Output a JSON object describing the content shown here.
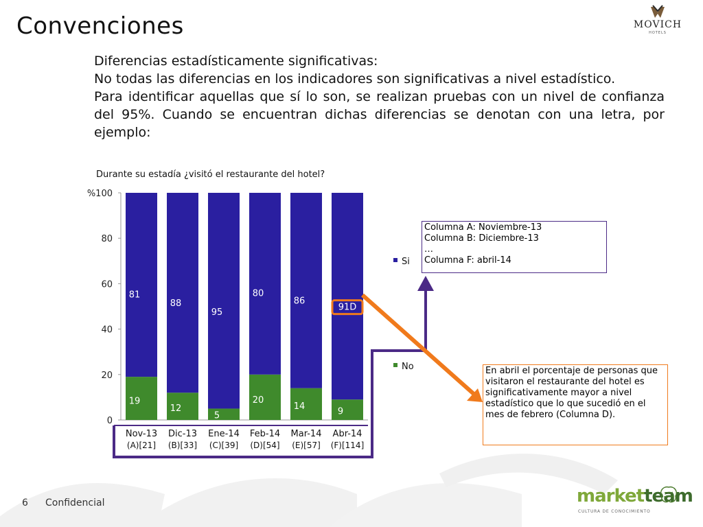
{
  "slide": {
    "title": "Convenciones",
    "page_number": "6",
    "footer_label": "Confidencial"
  },
  "logos": {
    "movich_word": "MOVICH",
    "movich_sub": "HOTELS",
    "marketteam_part1": "market",
    "marketteam_part2": "team",
    "marketteam_sub": "CULTURA DE CONOCIMIENTO"
  },
  "body": {
    "line1": "Diferencias estadísticamente significativas:",
    "line2": "No todas las diferencias en los indicadores son significativas a nivel estadístico.",
    "line3": "Para identificar aquellas que sí lo son, se realizan pruebas con un nivel de confianza del 95%. Cuando se encuentran dichas diferencias se denotan con una letra, por ejemplo:"
  },
  "columns_note": {
    "lines": [
      "Columna A: Noviembre-13",
      "Columna B: Diciembre-13",
      "…",
      "Columna F: abril-14"
    ]
  },
  "explain_note": {
    "text": "En abril el porcentaje de personas que visitaron el restaurante del hotel es significativamente mayor a nivel estadístico que lo que sucedió en el mes de febrero (Columna D)."
  },
  "colors": {
    "si": "#2a1fa0",
    "no": "#3f8a2c",
    "highlight": "#f07a1c",
    "connector": "#4b2a86"
  },
  "chart_data": {
    "type": "bar",
    "stacked": true,
    "title": "Durante su estadía ¿visitó el restaurante del hotel?",
    "y_unit_label": "%",
    "ylim": [
      0,
      100
    ],
    "yticks": [
      0,
      20,
      40,
      60,
      80,
      100
    ],
    "categories": [
      "Nov-13",
      "Dic-13",
      "Ene-14",
      "Feb-14",
      "Mar-14",
      "Abr-14"
    ],
    "category_codes": [
      "(A)",
      "(B)",
      "(C)",
      "(D)",
      "(E)",
      "(F)"
    ],
    "sample_sizes": [
      "[21]",
      "[33]",
      "[39]",
      "[54]",
      "[57]",
      "[114]"
    ],
    "series": [
      {
        "name": "No",
        "values": [
          19,
          12,
          5,
          20,
          14,
          9
        ],
        "labels": [
          "19",
          "12",
          "5",
          "20",
          "14",
          "9"
        ]
      },
      {
        "name": "Si",
        "values": [
          81,
          88,
          95,
          80,
          86,
          91
        ],
        "labels": [
          "81",
          "88",
          "95",
          "80",
          "86",
          "91D"
        ]
      }
    ],
    "legend": [
      "Si",
      "No"
    ],
    "legend_position": "right",
    "grid": false
  }
}
